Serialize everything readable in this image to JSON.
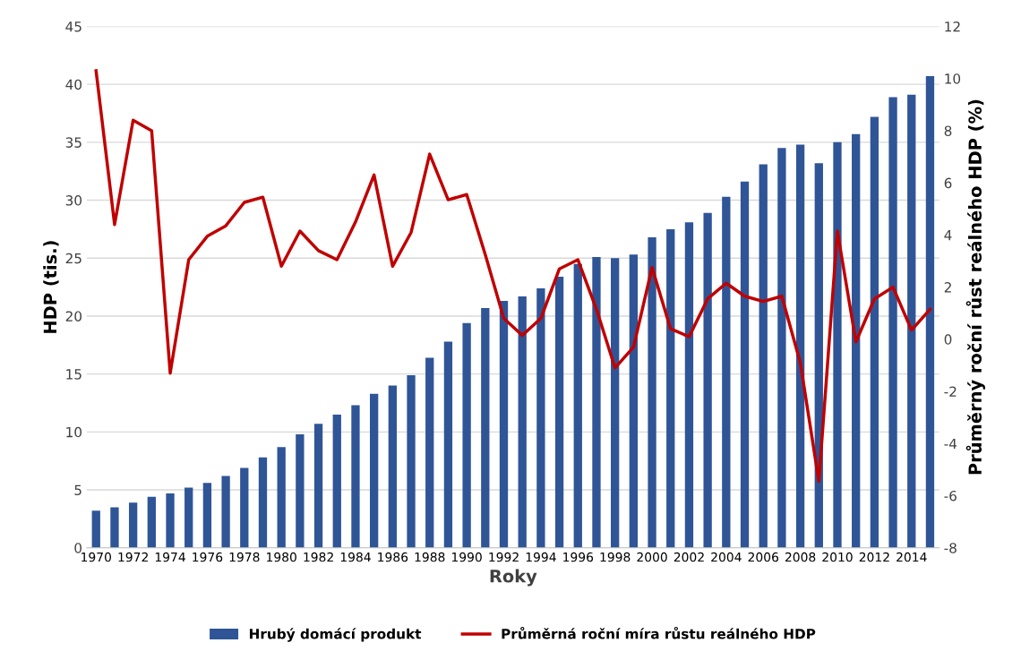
{
  "chart_data": {
    "type": "bar",
    "xlabel": "Roky",
    "ylabel": "HDP (tis.)",
    "y2label": "Průměrný roční růst reálného HDP (%)",
    "categories": [
      "1970",
      null,
      "1972",
      null,
      "1974",
      null,
      "1976",
      null,
      "1978",
      null,
      "1980",
      null,
      "1982",
      null,
      "1984",
      null,
      "1986",
      null,
      "1988",
      null,
      "1990",
      null,
      "1992",
      null,
      "1994",
      null,
      "1996",
      null,
      "1998",
      null,
      "2000",
      null,
      "2002",
      null,
      "2004",
      null,
      "2006",
      null,
      "2008",
      null,
      "2010",
      null,
      "2012",
      null,
      "2014",
      null
    ],
    "series": [
      {
        "name": "Hrubý domácí produkt",
        "color": "#2f5597",
        "values": [
          3.2,
          3.5,
          3.9,
          4.4,
          4.7,
          5.2,
          5.6,
          6.2,
          6.9,
          7.8,
          8.7,
          9.8,
          10.7,
          11.5,
          12.3,
          13.3,
          14.0,
          14.9,
          16.4,
          17.8,
          19.4,
          20.7,
          21.3,
          21.7,
          22.4,
          23.4,
          24.5,
          25.1,
          25.0,
          25.3,
          26.8,
          27.5,
          28.1,
          28.9,
          30.3,
          31.6,
          33.1,
          34.5,
          34.8,
          33.2,
          35.0,
          35.7,
          37.2,
          38.9,
          39.1,
          40.7
        ]
      },
      {
        "name": "Průměrná roční míra růstu reálného HDP",
        "type": "line",
        "axis": "y2",
        "color": "#c00000",
        "values": [
          10.3,
          4.4,
          8.4,
          8.0,
          -1.3,
          3.05,
          3.95,
          4.35,
          5.25,
          5.45,
          2.8,
          4.15,
          3.4,
          3.05,
          4.5,
          6.3,
          2.8,
          4.1,
          7.1,
          5.35,
          5.55,
          3.25,
          0.8,
          0.15,
          0.8,
          2.7,
          3.05,
          1.15,
          -1.1,
          -0.3,
          2.75,
          0.4,
          0.1,
          1.55,
          2.15,
          1.65,
          1.45,
          1.65,
          -0.9,
          -5.45,
          4.15,
          -0.1,
          1.55,
          2.0,
          0.35,
          1.15
        ]
      }
    ],
    "ylim": [
      0,
      45
    ],
    "yticks": [
      0,
      5,
      10,
      15,
      20,
      25,
      30,
      35,
      40,
      45
    ],
    "y2lim": [
      -8,
      12
    ],
    "y2ticks": [
      -8,
      -6,
      -4,
      -2,
      0,
      2,
      4,
      6,
      8,
      10,
      12
    ],
    "grid": "y",
    "legend": "bottom",
    "marker": "none",
    "line_style": "solid"
  }
}
